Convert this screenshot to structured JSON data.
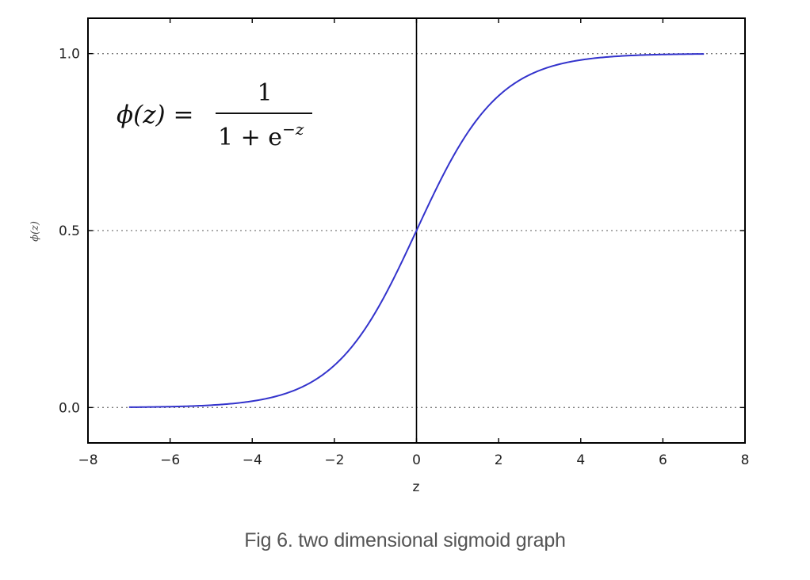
{
  "chart_data": {
    "type": "line",
    "function": "sigmoid",
    "formula": {
      "lhs": "ϕ(z) =",
      "numerator": "1",
      "denominator_base": "1 + e",
      "denominator_exponent": "−z"
    },
    "xlabel": "z",
    "ylabel": "ϕ(z)",
    "xlim": [
      -8,
      8
    ],
    "ylim": [
      -0.1,
      1.1
    ],
    "x_ticks": [
      -8,
      -6,
      -4,
      -2,
      0,
      2,
      4,
      6,
      8
    ],
    "x_tick_labels": [
      "−8",
      "−6",
      "−4",
      "−2",
      "0",
      "2",
      "4",
      "6",
      "8"
    ],
    "y_ticks": [
      0.0,
      0.5,
      1.0
    ],
    "y_tick_labels": [
      "0.0",
      "0.5",
      "1.0"
    ],
    "horizontal_dotted_lines": [
      0.0,
      0.5,
      1.0
    ],
    "vertical_line_x": 0,
    "series": [
      {
        "x_range": [
          -7,
          7
        ],
        "color": "#3333cc"
      }
    ],
    "grid": false,
    "legend": "none"
  },
  "caption": "Fig 6. two dimensional sigmoid graph"
}
